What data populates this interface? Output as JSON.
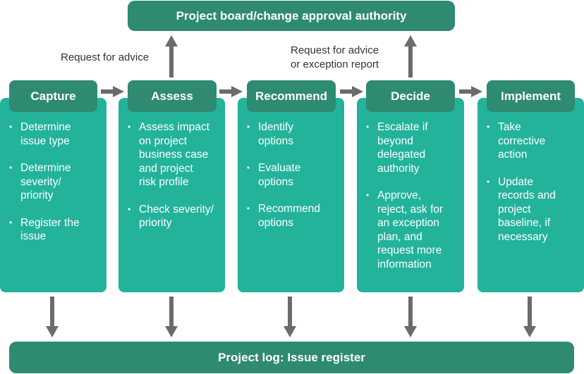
{
  "top_bar": {
    "label": "Project board/change approval authority"
  },
  "bottom_bar": {
    "label": "Project log: Issue register"
  },
  "notes": {
    "left": "Request for advice",
    "right_line1": "Request for advice",
    "right_line2": "or exception report"
  },
  "stages": [
    {
      "title": "Capture",
      "items": [
        "Determine\nissue type",
        "Determine\nseverity/\npriority",
        "Register the\nissue"
      ]
    },
    {
      "title": "Assess",
      "items": [
        "Assess impact\non project\nbusiness case\nand project\nrisk profile",
        "Check severity/\npriority"
      ]
    },
    {
      "title": "Recommend",
      "items": [
        "Identify\noptions",
        "Evaluate\noptions",
        "Recommend\noptions"
      ]
    },
    {
      "title": "Decide",
      "items": [
        "Escalate if\nbeyond\ndelegated\nauthority",
        "Approve,\nreject, ask for\nan exception\nplan, and\nrequest more\ninformation"
      ]
    },
    {
      "title": "Implement",
      "items": [
        "Take\ncorrective\naction",
        "Update\nrecords and\nproject\nbaseline, if\nnecessary"
      ]
    }
  ],
  "colors": {
    "dark": "#2f8a72",
    "light": "#22b39a",
    "arrow": "#6b6b6b"
  }
}
